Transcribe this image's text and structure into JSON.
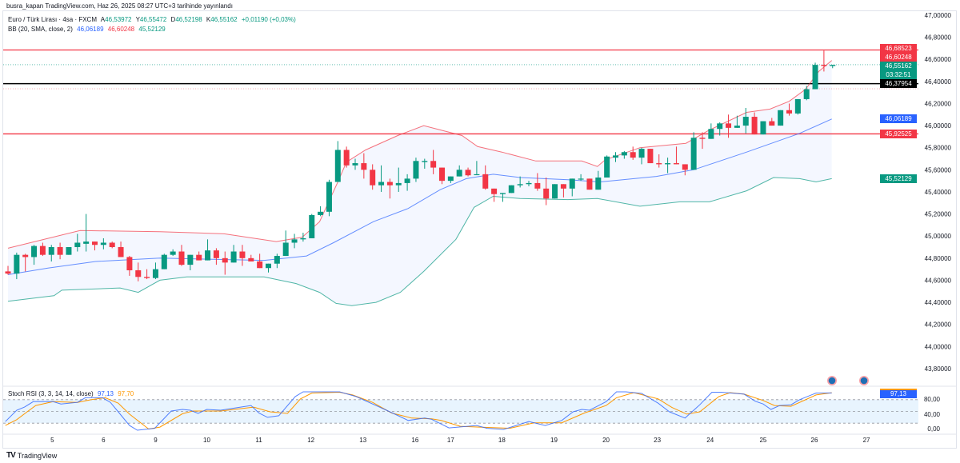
{
  "publish_line": "busra_kapan TradingView.com, Haz 26, 2025 08:27 UTC+3 tarihinde yayınlandı",
  "legend": {
    "symbol": "Euro / Türk Lirası · 4sa · FXCM",
    "open_label": "A",
    "open": "46,53972",
    "high_label": "Y",
    "high": "46,55472",
    "low_label": "D",
    "low": "46,52198",
    "close_label": "K",
    "close": "46,55162",
    "change": "+0,01190 (+0,03%)",
    "bb_name": "BB (20, SMA, close, 2)",
    "bb_basis": "46,06189",
    "bb_upper": "46,60248",
    "bb_lower": "45,52129"
  },
  "rsi_legend": {
    "name": "Stoch RSI (3, 3, 14, 14, close)",
    "k": "97,13",
    "d": "97,70"
  },
  "colors": {
    "up": "#089981",
    "down": "#f23645",
    "basis": "#2962ff",
    "upper": "#f23645",
    "lower": "#089981",
    "k": "#2962ff",
    "d": "#ff9800",
    "fill": "#e3f2fd"
  },
  "price_axis": [
    "47,00000",
    "46,80000",
    "46,60000",
    "46,40000",
    "46,20000",
    "46,00000",
    "45,80000",
    "45,60000",
    "45,40000",
    "45,20000",
    "45,00000",
    "44,80000",
    "44,60000",
    "44,40000",
    "44,20000",
    "44,00000",
    "43,80000"
  ],
  "price_axis_values": [
    47,
    46.8,
    46.6,
    46.4,
    46.2,
    46,
    45.8,
    45.6,
    45.4,
    45.2,
    45,
    44.8,
    44.6,
    44.4,
    44.2,
    44,
    43.8
  ],
  "rsi_axis": [
    "80,00",
    "40,00",
    "0,00"
  ],
  "price_labels": {
    "resistance": "46,68523",
    "bb_upper": "46,60248",
    "last": "46,55162",
    "countdown": "03:32:51",
    "level": "46,37954",
    "bb_basis": "46,06189",
    "support": "45,92525",
    "bb_lower": "45,52129",
    "rsi_k": "97,13"
  },
  "horizontal_lines": {
    "resistance": 46.68523,
    "level": 46.37954,
    "support": 45.92525,
    "last": 46.55162
  },
  "time_axis": [
    {
      "label": "5",
      "i": 5.1
    },
    {
      "label": "6",
      "i": 11
    },
    {
      "label": "9",
      "i": 17
    },
    {
      "label": "10",
      "i": 22.9
    },
    {
      "label": "11",
      "i": 28.9
    },
    {
      "label": "12",
      "i": 34.9
    },
    {
      "label": "13",
      "i": 40.9
    },
    {
      "label": "16",
      "i": 46.9
    },
    {
      "label": "17",
      "i": 51
    },
    {
      "label": "18",
      "i": 56.9
    },
    {
      "label": "19",
      "i": 62.9
    },
    {
      "label": "20",
      "i": 68.9
    },
    {
      "label": "23",
      "i": 74.8
    },
    {
      "label": "24",
      "i": 80.9
    },
    {
      "label": "25",
      "i": 87
    },
    {
      "label": "26",
      "i": 92.9
    },
    {
      "label": "27",
      "i": 98.9
    }
  ],
  "branding": "TradingView",
  "chart_data": {
    "type": "candlestick",
    "candles_ohlc": [
      [
        44.68,
        44.73,
        44.65,
        44.66
      ],
      [
        44.66,
        44.85,
        44.61,
        44.83
      ],
      [
        44.83,
        44.84,
        44.68,
        44.81
      ],
      [
        44.81,
        44.92,
        44.74,
        44.91
      ],
      [
        44.91,
        44.94,
        44.82,
        44.83
      ],
      [
        44.83,
        44.92,
        44.77,
        44.9
      ],
      [
        44.9,
        44.94,
        44.79,
        44.83
      ],
      [
        44.83,
        44.9,
        44.83,
        44.9
      ],
      [
        44.9,
        45.02,
        44.86,
        44.94
      ],
      [
        44.93,
        45.2,
        44.86,
        44.95
      ],
      [
        44.95,
        44.95,
        44.87,
        44.92
      ],
      [
        44.92,
        44.98,
        44.88,
        44.94
      ],
      [
        44.94,
        44.95,
        44.89,
        44.9
      ],
      [
        44.9,
        44.95,
        44.81,
        44.81
      ],
      [
        44.81,
        44.82,
        44.64,
        44.69
      ],
      [
        44.69,
        44.76,
        44.59,
        44.63
      ],
      [
        44.63,
        44.7,
        44.61,
        44.62
      ],
      [
        44.62,
        44.76,
        44.61,
        44.7
      ],
      [
        44.7,
        44.84,
        44.7,
        44.83
      ],
      [
        44.83,
        44.88,
        44.82,
        44.86
      ],
      [
        44.86,
        44.92,
        44.73,
        44.74
      ],
      [
        44.74,
        44.83,
        44.69,
        44.83
      ],
      [
        44.83,
        44.86,
        44.78,
        44.78
      ],
      [
        44.78,
        44.97,
        44.78,
        44.87
      ],
      [
        44.87,
        44.89,
        44.74,
        44.8
      ],
      [
        44.8,
        44.86,
        44.65,
        44.76
      ],
      [
        44.76,
        44.92,
        44.76,
        44.86
      ],
      [
        44.86,
        44.92,
        44.73,
        44.8
      ],
      [
        44.8,
        44.83,
        44.77,
        44.77
      ],
      [
        44.77,
        44.84,
        44.71,
        44.71
      ],
      [
        44.71,
        44.75,
        44.67,
        44.75
      ],
      [
        44.75,
        44.84,
        44.71,
        44.82
      ],
      [
        44.82,
        45.05,
        44.82,
        44.94
      ],
      [
        44.94,
        45.02,
        44.89,
        44.97
      ],
      [
        44.97,
        45.03,
        44.95,
        44.98
      ],
      [
        44.98,
        45.2,
        44.98,
        45.19
      ],
      [
        45.19,
        45.27,
        45.18,
        45.22
      ],
      [
        45.22,
        45.51,
        45.18,
        45.49
      ],
      [
        45.49,
        45.86,
        45.49,
        45.78
      ],
      [
        45.78,
        45.81,
        45.62,
        45.64
      ],
      [
        45.64,
        45.7,
        45.6,
        45.66
      ],
      [
        45.66,
        45.75,
        45.52,
        45.6
      ],
      [
        45.6,
        45.65,
        45.42,
        45.46
      ],
      [
        45.46,
        45.64,
        45.4,
        45.49
      ],
      [
        45.49,
        45.52,
        45.34,
        45.46
      ],
      [
        45.46,
        45.62,
        45.4,
        45.48
      ],
      [
        45.48,
        45.56,
        45.41,
        45.52
      ],
      [
        45.52,
        45.71,
        45.49,
        45.68
      ],
      [
        45.67,
        45.7,
        45.61,
        45.68
      ],
      [
        45.68,
        45.78,
        45.56,
        45.62
      ],
      [
        45.62,
        45.62,
        45.47,
        45.5
      ],
      [
        45.5,
        45.54,
        45.48,
        45.54
      ],
      [
        45.54,
        45.64,
        45.54,
        45.6
      ],
      [
        45.6,
        45.62,
        45.54,
        45.55
      ],
      [
        45.56,
        45.68,
        45.56,
        45.56
      ],
      [
        45.56,
        45.64,
        45.42,
        45.43
      ],
      [
        45.43,
        45.43,
        45.31,
        45.38
      ],
      [
        45.38,
        45.39,
        45.31,
        45.39
      ],
      [
        45.39,
        45.46,
        45.39,
        45.46
      ],
      [
        45.46,
        45.54,
        45.44,
        45.47
      ],
      [
        45.47,
        45.5,
        45.45,
        45.48
      ],
      [
        45.48,
        45.57,
        45.41,
        45.43
      ],
      [
        45.43,
        45.53,
        45.28,
        45.34
      ],
      [
        45.34,
        45.47,
        45.34,
        45.47
      ],
      [
        45.47,
        45.47,
        45.35,
        45.43
      ],
      [
        45.43,
        45.52,
        45.36,
        45.52
      ],
      [
        45.52,
        45.56,
        45.5,
        45.52
      ],
      [
        45.52,
        45.52,
        45.42,
        45.42
      ],
      [
        45.42,
        45.59,
        45.42,
        45.53
      ],
      [
        45.53,
        45.73,
        45.53,
        45.72
      ],
      [
        45.71,
        45.76,
        45.67,
        45.73
      ],
      [
        45.73,
        45.77,
        45.7,
        45.76
      ],
      [
        45.76,
        45.81,
        45.69,
        45.71
      ],
      [
        45.71,
        45.8,
        45.65,
        45.79
      ],
      [
        45.79,
        45.79,
        45.66,
        45.66
      ],
      [
        45.66,
        45.74,
        45.62,
        45.65
      ],
      [
        45.65,
        45.71,
        45.57,
        45.66
      ],
      [
        45.66,
        45.81,
        45.65,
        45.65
      ],
      [
        45.65,
        45.65,
        45.55,
        45.6
      ],
      [
        45.6,
        45.94,
        45.6,
        45.89
      ],
      [
        45.89,
        45.94,
        45.79,
        45.88
      ],
      [
        45.88,
        46.02,
        45.88,
        45.97
      ],
      [
        45.97,
        46.03,
        45.91,
        46.02
      ],
      [
        46.02,
        46.1,
        45.89,
        45.98
      ],
      [
        45.98,
        46.09,
        45.98,
        46.0
      ],
      [
        46.0,
        46.16,
        45.93,
        46.08
      ],
      [
        46.08,
        46.12,
        45.92,
        45.92
      ],
      [
        45.92,
        46.04,
        45.92,
        46.04
      ],
      [
        46.04,
        46.07,
        46.0,
        46.0
      ],
      [
        46.0,
        46.14,
        46.0,
        46.14
      ],
      [
        46.14,
        46.2,
        46.09,
        46.11
      ],
      [
        46.11,
        46.24,
        46.1,
        46.24
      ],
      [
        46.24,
        46.36,
        46.23,
        46.33
      ],
      [
        46.33,
        46.57,
        46.33,
        46.55
      ],
      [
        46.55,
        46.68,
        46.49,
        46.54
      ],
      [
        46.54,
        46.55,
        46.52,
        46.55
      ]
    ],
    "bb_upper": [
      [
        0,
        44.89
      ],
      [
        8.3,
        45.05
      ],
      [
        17.5,
        45.04
      ],
      [
        24.9,
        45.02
      ],
      [
        30.9,
        44.95
      ],
      [
        33.9,
        44.99
      ],
      [
        35.9,
        45.13
      ],
      [
        38,
        45.49
      ],
      [
        39,
        45.67
      ],
      [
        41.2,
        45.78
      ],
      [
        44.9,
        45.91
      ],
      [
        47.9,
        46.0
      ],
      [
        52.3,
        45.91
      ],
      [
        54.1,
        45.81
      ],
      [
        56.9,
        45.76
      ],
      [
        60.8,
        45.68
      ],
      [
        66.1,
        45.68
      ],
      [
        67.9,
        45.63
      ],
      [
        68.8,
        45.69
      ],
      [
        72.8,
        45.8
      ],
      [
        78.1,
        45.84
      ],
      [
        80.8,
        45.96
      ],
      [
        85.1,
        46.12
      ],
      [
        87.8,
        46.15
      ],
      [
        90,
        46.22
      ],
      [
        91.9,
        46.33
      ],
      [
        93.4,
        46.49
      ],
      [
        94.9,
        46.59
      ]
    ],
    "bb_basis": [
      [
        0,
        44.65
      ],
      [
        4.6,
        44.71
      ],
      [
        10.1,
        44.77
      ],
      [
        17.5,
        44.8
      ],
      [
        29.5,
        44.78
      ],
      [
        34.4,
        44.82
      ],
      [
        37.5,
        44.94
      ],
      [
        42.1,
        45.13
      ],
      [
        46.1,
        45.25
      ],
      [
        49.8,
        45.42
      ],
      [
        52.8,
        45.52
      ],
      [
        55.9,
        45.56
      ],
      [
        59,
        45.53
      ],
      [
        64.5,
        45.51
      ],
      [
        68.2,
        45.49
      ],
      [
        74.7,
        45.54
      ],
      [
        79,
        45.6
      ],
      [
        85.1,
        45.76
      ],
      [
        91.2,
        45.93
      ],
      [
        94.9,
        46.06
      ]
    ],
    "bb_lower": [
      [
        0,
        44.41
      ],
      [
        5.3,
        44.46
      ],
      [
        6.2,
        44.51
      ],
      [
        12.9,
        44.53
      ],
      [
        15,
        44.49
      ],
      [
        17.5,
        44.6
      ],
      [
        20.6,
        44.63
      ],
      [
        29.5,
        44.63
      ],
      [
        33.2,
        44.57
      ],
      [
        35.9,
        44.49
      ],
      [
        37.8,
        44.39
      ],
      [
        39.6,
        44.37
      ],
      [
        42.4,
        44.4
      ],
      [
        45.2,
        44.49
      ],
      [
        47.9,
        44.68
      ],
      [
        51.6,
        44.97
      ],
      [
        53.7,
        45.26
      ],
      [
        55.9,
        45.36
      ],
      [
        59,
        45.34
      ],
      [
        64.5,
        45.33
      ],
      [
        67.9,
        45.34
      ],
      [
        72.8,
        45.27
      ],
      [
        77.4,
        45.31
      ],
      [
        80.8,
        45.31
      ],
      [
        85.1,
        45.41
      ],
      [
        88.2,
        45.53
      ],
      [
        91.2,
        45.52
      ],
      [
        93.1,
        45.49
      ],
      [
        94.9,
        45.52
      ]
    ],
    "stoch_k": [
      [
        -0.3,
        24
      ],
      [
        1,
        53
      ],
      [
        1.9,
        61
      ],
      [
        2.9,
        75
      ],
      [
        5.2,
        75
      ],
      [
        6.1,
        69
      ],
      [
        8,
        73
      ],
      [
        8.9,
        85
      ],
      [
        10.9,
        85
      ],
      [
        11.8,
        73
      ],
      [
        12.7,
        49
      ],
      [
        14,
        14
      ],
      [
        14.9,
        2
      ],
      [
        16.9,
        7
      ],
      [
        18.8,
        51
      ],
      [
        20.1,
        55
      ],
      [
        21,
        53
      ],
      [
        21.9,
        45
      ],
      [
        22.9,
        55
      ],
      [
        24.5,
        53
      ],
      [
        26.5,
        60
      ],
      [
        28,
        65
      ],
      [
        28.9,
        46
      ],
      [
        29.9,
        35
      ],
      [
        31.2,
        39
      ],
      [
        33.1,
        88
      ],
      [
        34,
        100
      ],
      [
        38.2,
        100
      ],
      [
        40.1,
        88
      ],
      [
        43.6,
        53
      ],
      [
        46.1,
        27
      ],
      [
        48,
        33
      ],
      [
        48.8,
        30
      ],
      [
        50.8,
        8
      ],
      [
        54,
        14
      ],
      [
        55.2,
        7
      ],
      [
        57.1,
        4
      ],
      [
        60,
        24
      ],
      [
        61.9,
        14
      ],
      [
        63.8,
        27
      ],
      [
        65.1,
        49
      ],
      [
        66.1,
        55
      ],
      [
        67,
        53
      ],
      [
        68.9,
        75
      ],
      [
        70.1,
        100
      ],
      [
        71.2,
        100
      ],
      [
        73,
        96
      ],
      [
        74.9,
        71
      ],
      [
        76.2,
        49
      ],
      [
        78,
        33
      ],
      [
        79.7,
        67
      ],
      [
        81.1,
        99
      ],
      [
        82.2,
        99
      ],
      [
        84.8,
        94
      ],
      [
        86.1,
        76
      ],
      [
        87,
        69
      ],
      [
        87.9,
        55
      ],
      [
        88.9,
        65
      ],
      [
        90.2,
        67
      ],
      [
        91.2,
        80
      ],
      [
        93.1,
        97
      ],
      [
        94.9,
        97.13
      ]
    ],
    "stoch_d": [
      [
        -0.3,
        14
      ],
      [
        1,
        29
      ],
      [
        2.2,
        49
      ],
      [
        3.2,
        65
      ],
      [
        5.2,
        75
      ],
      [
        8,
        73
      ],
      [
        9.6,
        80
      ],
      [
        11.2,
        85
      ],
      [
        12.7,
        71
      ],
      [
        14,
        43
      ],
      [
        16.2,
        5
      ],
      [
        17.5,
        10
      ],
      [
        20.1,
        44
      ],
      [
        21.3,
        51
      ],
      [
        24.5,
        51
      ],
      [
        28.3,
        61
      ],
      [
        30.2,
        49
      ],
      [
        32.2,
        45
      ],
      [
        33.7,
        82
      ],
      [
        35,
        97
      ],
      [
        38.2,
        99
      ],
      [
        39.7,
        92
      ],
      [
        42,
        73
      ],
      [
        44.2,
        46
      ],
      [
        46.5,
        33
      ],
      [
        48.8,
        31
      ],
      [
        49.9,
        27
      ],
      [
        52.1,
        12
      ],
      [
        54.3,
        10
      ],
      [
        57.8,
        7
      ],
      [
        60.6,
        21
      ],
      [
        63.8,
        21
      ],
      [
        66.4,
        46
      ],
      [
        68.9,
        65
      ],
      [
        70.1,
        85
      ],
      [
        72.1,
        98
      ],
      [
        74.9,
        82
      ],
      [
        76.5,
        60
      ],
      [
        78.2,
        43
      ],
      [
        79.7,
        49
      ],
      [
        81.9,
        88
      ],
      [
        83.2,
        98
      ],
      [
        84.8,
        94
      ],
      [
        87,
        78
      ],
      [
        88.3,
        65
      ],
      [
        90.2,
        63
      ],
      [
        93.1,
        92
      ],
      [
        94.9,
        97.7
      ]
    ],
    "rsi_bands": [
      80,
      50,
      20
    ]
  }
}
